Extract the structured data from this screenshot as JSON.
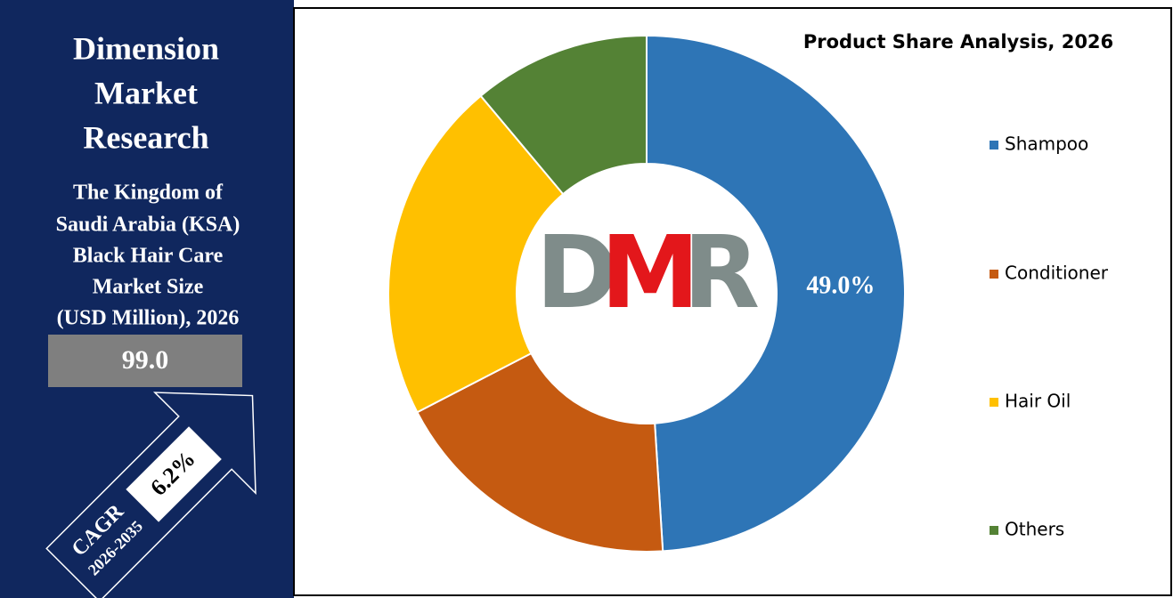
{
  "brand": [
    "Dimension",
    "Market",
    "Research"
  ],
  "market_title": [
    "The Kingdom of",
    "Saudi Arabia (KSA)",
    "Black Hair Care",
    "Market Size",
    "(USD Million), 2026"
  ],
  "market_value": "99.0",
  "cagr": {
    "label": "CAGR",
    "period": "2026-2035",
    "value": "6.2%"
  },
  "logo": [
    "D",
    "M",
    "R"
  ],
  "chart_data": {
    "type": "donut",
    "title": "Product Share Analysis, 2026",
    "categories": [
      "Shampoo",
      "Conditioner",
      "Hair Oil",
      "Others"
    ],
    "values": [
      49.0,
      18.4,
      21.5,
      11.1
    ],
    "value_labels": [
      "49.0%",
      null,
      null,
      null
    ],
    "colors": [
      "#2e75b6",
      "#c55a11",
      "#ffc000",
      "#548235"
    ],
    "legend": "right"
  }
}
